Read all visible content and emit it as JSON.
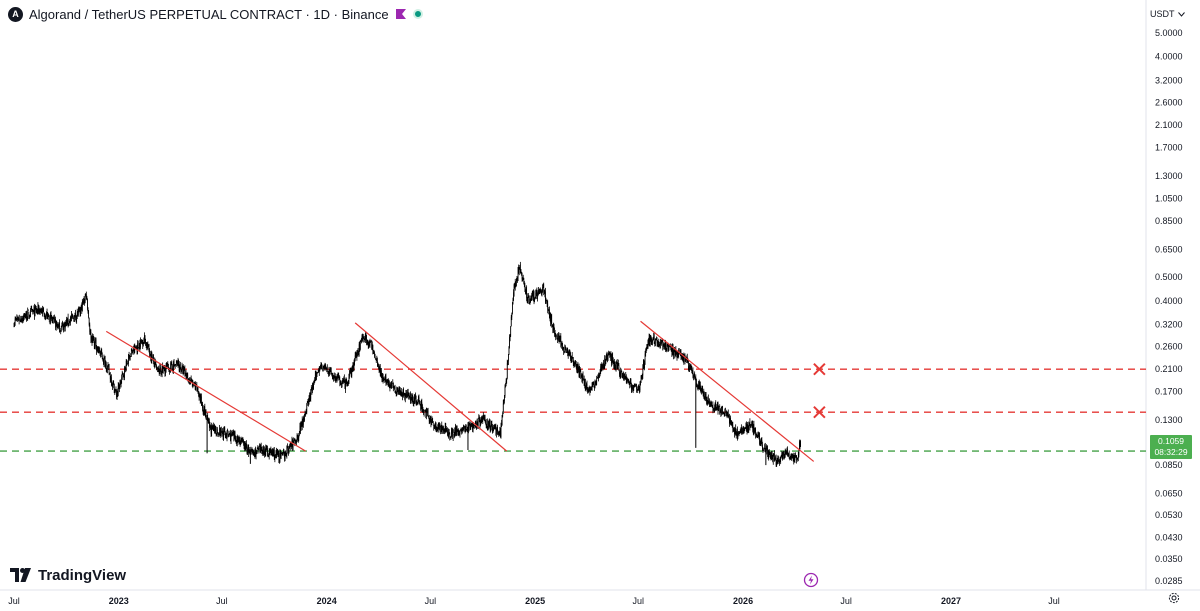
{
  "header": {
    "symbol_logo": "A",
    "title": "Algorand / TetherUS PERPETUAL CONTRACT · 1D · Binance",
    "flag_color": "#9c27b0",
    "status_color": "#089981"
  },
  "price_scale": {
    "currency": "USDT",
    "currency_icon": "chevron-down-icon",
    "labels": [
      "5.0000",
      "4.0000",
      "3.2000",
      "2.6000",
      "2.1000",
      "1.7000",
      "1.3000",
      "1.0500",
      "0.8500",
      "0.6500",
      "0.5000",
      "0.4000",
      "0.3200",
      "0.2600",
      "0.2100",
      "0.1700",
      "0.1300",
      "0.1059",
      "0.0850",
      "0.0650",
      "0.0530",
      "0.0430",
      "0.0350",
      "0.0285"
    ]
  },
  "last_price": {
    "value": "0.1059",
    "countdown": "08:32:29",
    "color": "#4caf50"
  },
  "time_axis": {
    "labels": [
      "Jul",
      "2023",
      "Jul",
      "2024",
      "Jul",
      "2025",
      "Jul",
      "2026",
      "Jul",
      "2027",
      "Jul"
    ]
  },
  "branding": {
    "name": "TradingView"
  },
  "chart_data": {
    "type": "candlestick",
    "timeframe": "1D",
    "y_scale": "log",
    "ylim": [
      0.0285,
      5.2
    ],
    "x_range": [
      "2022-07",
      "2027-08"
    ],
    "candle_color": "#000000",
    "price_path": [
      [
        "2022-07-01",
        0.33
      ],
      [
        "2022-08-15",
        0.37
      ],
      [
        "2022-09-20",
        0.31
      ],
      [
        "2022-10-25",
        0.36
      ],
      [
        "2022-11-05",
        0.43
      ],
      [
        "2022-11-12",
        0.29
      ],
      [
        "2022-12-10",
        0.22
      ],
      [
        "2022-12-28",
        0.165
      ],
      [
        "2023-01-20",
        0.24
      ],
      [
        "2023-02-15",
        0.28
      ],
      [
        "2023-03-10",
        0.205
      ],
      [
        "2023-04-15",
        0.22
      ],
      [
        "2023-05-20",
        0.17
      ],
      [
        "2023-06-10",
        0.12
      ],
      [
        "2023-07-05",
        0.115
      ],
      [
        "2023-08-01",
        0.108
      ],
      [
        "2023-08-20",
        0.095
      ],
      [
        "2023-09-10",
        0.098
      ],
      [
        "2023-10-15",
        0.092
      ],
      [
        "2023-11-10",
        0.11
      ],
      [
        "2023-12-05",
        0.17
      ],
      [
        "2023-12-20",
        0.22
      ],
      [
        "2024-01-10",
        0.2
      ],
      [
        "2024-02-05",
        0.18
      ],
      [
        "2024-03-05",
        0.29
      ],
      [
        "2024-03-20",
        0.26
      ],
      [
        "2024-04-10",
        0.19
      ],
      [
        "2024-05-01",
        0.175
      ],
      [
        "2024-06-10",
        0.155
      ],
      [
        "2024-07-05",
        0.125
      ],
      [
        "2024-08-05",
        0.115
      ],
      [
        "2024-09-01",
        0.12
      ],
      [
        "2024-10-01",
        0.13
      ],
      [
        "2024-11-01",
        0.115
      ],
      [
        "2024-11-12",
        0.2
      ],
      [
        "2024-11-25",
        0.45
      ],
      [
        "2024-12-04",
        0.55
      ],
      [
        "2024-12-20",
        0.4
      ],
      [
        "2025-01-15",
        0.45
      ],
      [
        "2025-02-03",
        0.3
      ],
      [
        "2025-03-01",
        0.24
      ],
      [
        "2025-04-07",
        0.17
      ],
      [
        "2025-05-10",
        0.24
      ],
      [
        "2025-06-10",
        0.19
      ],
      [
        "2025-07-01",
        0.17
      ],
      [
        "2025-07-20",
        0.28
      ],
      [
        "2025-08-20",
        0.26
      ],
      [
        "2025-09-20",
        0.235
      ],
      [
        "2025-10-10",
        0.19
      ],
      [
        "2025-11-04",
        0.15
      ],
      [
        "2025-12-01",
        0.14
      ],
      [
        "2025-12-20",
        0.115
      ],
      [
        "2026-01-15",
        0.125
      ],
      [
        "2026-02-05",
        0.1
      ],
      [
        "2026-03-01",
        0.088
      ],
      [
        "2026-03-20",
        0.095
      ],
      [
        "2026-04-05",
        0.09
      ],
      [
        "2026-04-12",
        0.1059
      ]
    ],
    "spikes": [
      [
        "2023-06-05",
        0.095
      ],
      [
        "2023-08-20",
        0.086
      ],
      [
        "2024-09-05",
        0.098
      ],
      [
        "2025-10-10",
        0.1
      ],
      [
        "2026-02-10",
        0.085
      ]
    ],
    "horizontal_lines": [
      {
        "price": 0.21,
        "color": "#e53935",
        "style": "dashed"
      },
      {
        "price": 0.14,
        "color": "#e53935",
        "style": "dashed"
      },
      {
        "price": 0.097,
        "color": "#43a047",
        "style": "dashed"
      }
    ],
    "trendlines": [
      {
        "from": [
          "2022-12-10",
          0.3
        ],
        "to": [
          "2023-11-25",
          0.097
        ],
        "color": "#e53935"
      },
      {
        "from": [
          "2024-02-20",
          0.325
        ],
        "to": [
          "2024-11-12",
          0.097
        ],
        "color": "#e53935"
      },
      {
        "from": [
          "2025-07-05",
          0.33
        ],
        "to": [
          "2026-05-05",
          0.088
        ],
        "color": "#e53935"
      }
    ],
    "markers": [
      {
        "shape": "x",
        "time": "2026-05-15",
        "price": 0.21,
        "color": "#e53935"
      },
      {
        "shape": "x",
        "time": "2026-05-15",
        "price": 0.14,
        "color": "#e53935"
      }
    ]
  }
}
